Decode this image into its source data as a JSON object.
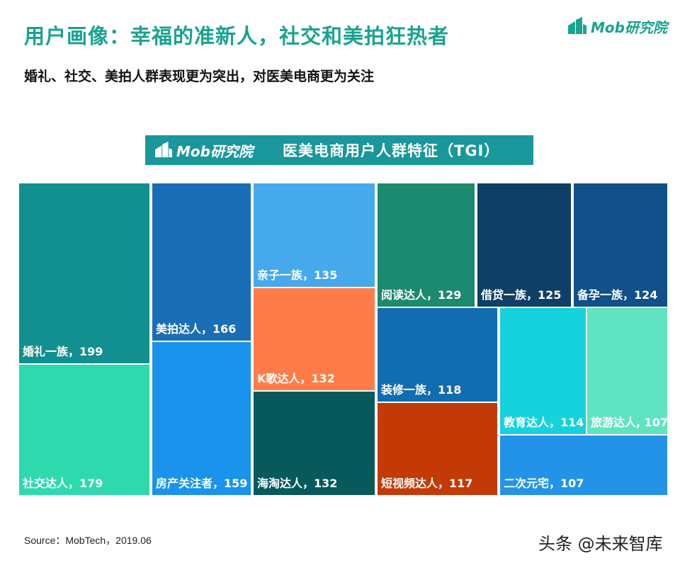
{
  "header": {
    "title": "用户画像：幸福的准新人，社交和美拍狂热者",
    "subtitle": "婚礼、社交、美拍人群表现更为突出，对医美电商更为关注",
    "brand": "Mob研究院"
  },
  "banner": {
    "brand": "Mob研究院",
    "title": "医美电商用户人群特征（TGI）"
  },
  "chart_data": {
    "type": "treemap",
    "title": "医美电商用户人群特征（TGI）",
    "items": [
      {
        "name": "婚礼一族",
        "value": 199,
        "label": "婚礼一族，199",
        "color": "#11908f"
      },
      {
        "name": "社交达人",
        "value": 179,
        "label": "社交达人，179",
        "color": "#2ed9ae"
      },
      {
        "name": "美拍达人",
        "value": 166,
        "label": "美拍达人，166",
        "color": "#1a6eb5"
      },
      {
        "name": "房产关注者",
        "value": 159,
        "label": "房产关注者，159",
        "color": "#1993ec"
      },
      {
        "name": "亲子一族",
        "value": 135,
        "label": "亲子一族，135",
        "color": "#46a9ec"
      },
      {
        "name": "K歌达人",
        "value": 132,
        "label": "K歌达人，132",
        "color": "#ff7c48"
      },
      {
        "name": "海淘达人",
        "value": 132,
        "label": "海淘达人，132",
        "color": "#07595c"
      },
      {
        "name": "阅读达人",
        "value": 129,
        "label": "阅读达人，129",
        "color": "#1c8a6e"
      },
      {
        "name": "借贷一族",
        "value": 125,
        "label": "借贷一族，125",
        "color": "#0f3f66"
      },
      {
        "name": "备孕一族",
        "value": 124,
        "label": "备孕一族，124",
        "color": "#115089"
      },
      {
        "name": "装修一族",
        "value": 118,
        "label": "装修一族，118",
        "color": "#126cb0"
      },
      {
        "name": "短视频达人",
        "value": 117,
        "label": "短视频达人，117",
        "color": "#c43a06"
      },
      {
        "name": "教育达人",
        "value": 114,
        "label": "教育达人，114",
        "color": "#16d2dc"
      },
      {
        "name": "旅游达人",
        "value": 107,
        "label": "旅游达人, 107",
        "color": "#5fe3c0"
      },
      {
        "name": "二次元宅",
        "value": 107,
        "label": "二次元宅，107",
        "color": "#2393e8"
      }
    ]
  },
  "footer": {
    "source": "Source：MobTech，2019.06",
    "watermark": "头条 @未来智库"
  }
}
